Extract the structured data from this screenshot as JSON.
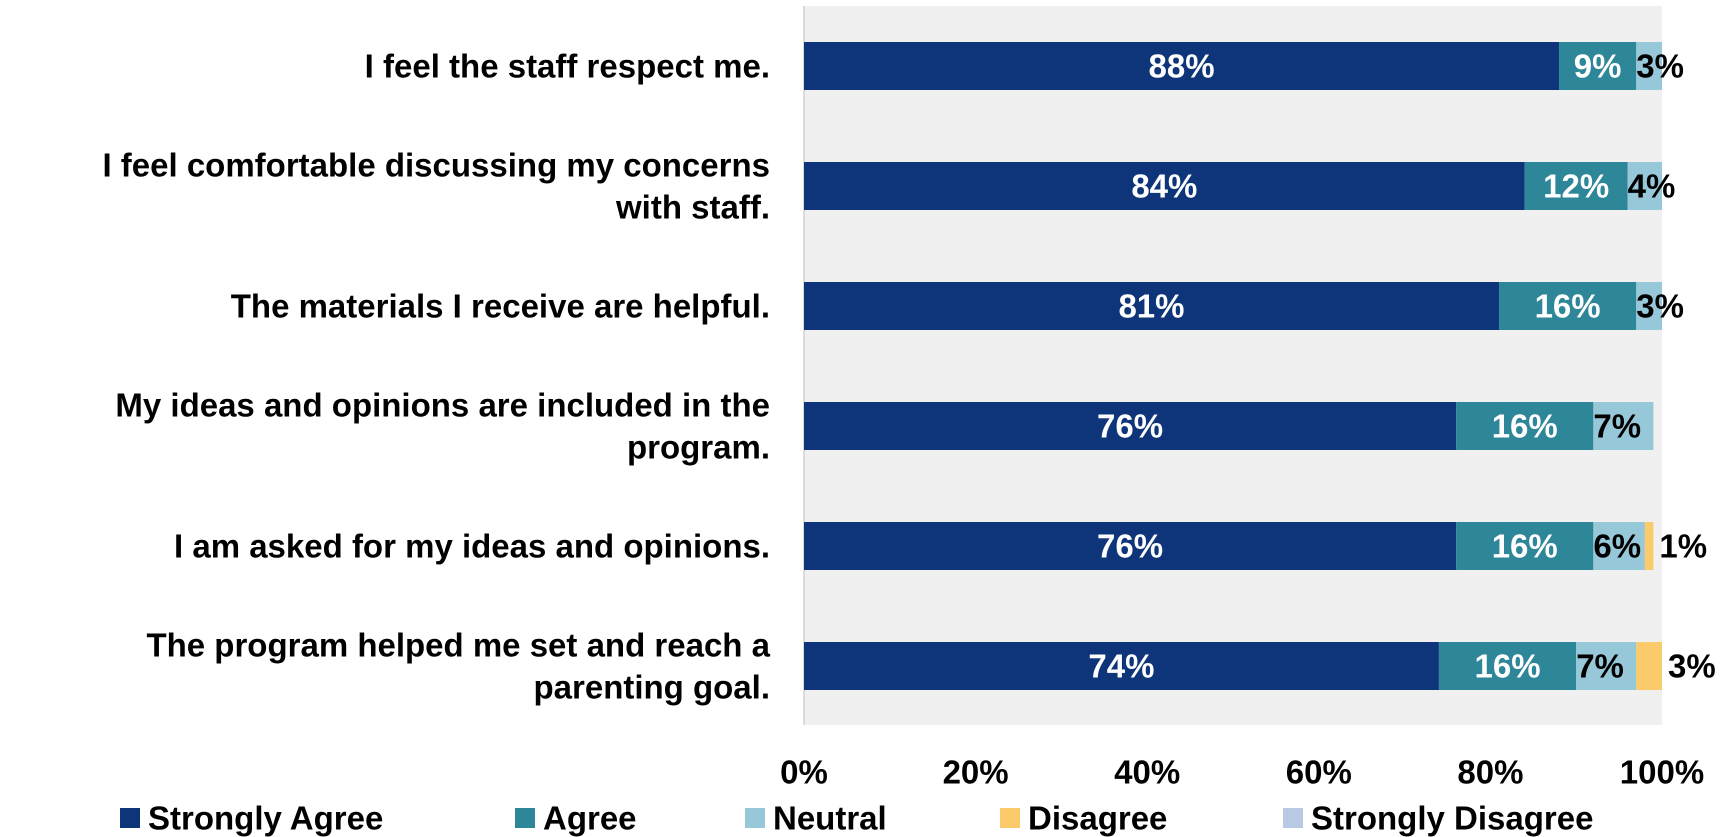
{
  "chart_data": {
    "type": "bar",
    "orientation": "horizontal",
    "stacked": true,
    "categories": [
      "I feel the staff respect me.",
      "I feel comfortable discussing my concerns with staff.",
      "The materials I receive are helpful.",
      "My ideas and opinions are included in the program.",
      "I am asked for my ideas and opinions.",
      "The program helped me set and reach a parenting goal."
    ],
    "category_lines": [
      [
        "I feel the staff respect me."
      ],
      [
        "I feel comfortable discussing my concerns",
        "with staff."
      ],
      [
        "The materials I receive are helpful."
      ],
      [
        "My ideas and opinions are included in the",
        "program."
      ],
      [
        "I am asked for my ideas and opinions."
      ],
      [
        "The program helped me set and reach a",
        "parenting goal."
      ]
    ],
    "series": [
      {
        "name": "Strongly Agree",
        "color": "#0e357a",
        "label_color": "#ffffff",
        "values": [
          88,
          84,
          81,
          76,
          76,
          74
        ]
      },
      {
        "name": "Agree",
        "color": "#2e8699",
        "label_color": "#ffffff",
        "values": [
          9,
          12,
          16,
          16,
          16,
          16
        ]
      },
      {
        "name": "Neutral",
        "color": "#96c8d9",
        "label_color": "#000000",
        "values": [
          3,
          4,
          3,
          7,
          6,
          7
        ]
      },
      {
        "name": "Disagree",
        "color": "#fbcb6b",
        "label_color": "#000000",
        "values": [
          0,
          0,
          0,
          0,
          1,
          3
        ]
      },
      {
        "name": "Strongly Disagree",
        "color": "#b7c9e3",
        "label_color": "#000000",
        "values": [
          0,
          0,
          0,
          0,
          0,
          0
        ]
      }
    ],
    "xlim": [
      0,
      100
    ],
    "x_ticks": [
      "0%",
      "20%",
      "40%",
      "60%",
      "80%",
      "100%"
    ],
    "plot_background": "#f0f0f0",
    "legend_position": "bottom",
    "grid": false,
    "title": "",
    "xlabel": "",
    "ylabel": ""
  }
}
